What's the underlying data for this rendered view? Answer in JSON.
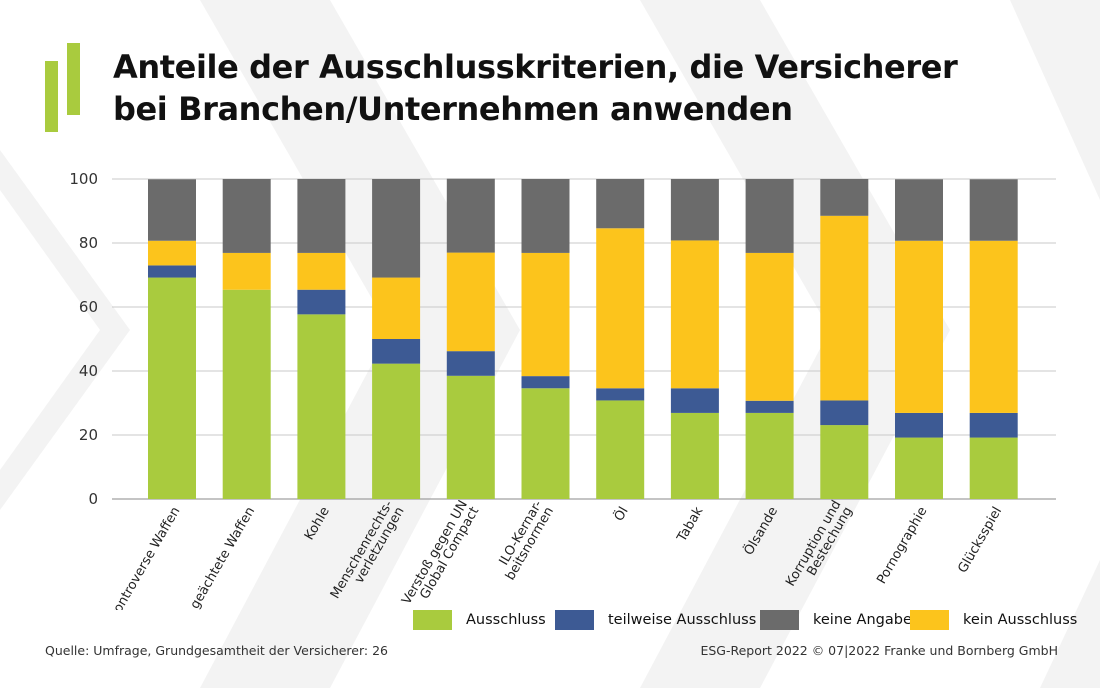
{
  "title_lines": [
    "Anteile der Ausschlusskriterien, die Versicherer",
    "bei Branchen/Unternehmen anwenden"
  ],
  "source": "Quelle: Umfrage, Grundgesamtheit der Versicherer: 26",
  "copyright": "ESG-Report 2022 © 07|2022 Franke und Bornberg GmbH",
  "colors": {
    "ausschluss": "#a9cb3e",
    "teilweise": "#3d5a94",
    "keine_angabe": "#6b6b6b",
    "kein_ausschluss": "#fcc41c",
    "logo": "#a9cb3e"
  },
  "chart_data": {
    "type": "bar",
    "stacked": true,
    "ylim": [
      0,
      100
    ],
    "yticks": [
      0,
      20,
      40,
      60,
      80,
      100
    ],
    "grid": true,
    "legend_position": "bottom-right",
    "categories": [
      [
        "kontroverse Waffen"
      ],
      [
        "geächtete Waffen"
      ],
      [
        "Kohle"
      ],
      [
        "Menschenrechts-",
        "verletzungen"
      ],
      [
        "Verstoß gegen UN",
        "Global Compact"
      ],
      [
        "ILO-Kernar-",
        "beitsnormen"
      ],
      [
        "Öl"
      ],
      [
        "Tabak"
      ],
      [
        "Ölsande"
      ],
      [
        "Korruption und",
        "Bestechung"
      ],
      [
        "Pornographie"
      ],
      [
        "Glücksspiel"
      ]
    ],
    "series": [
      {
        "name": "Ausschluss",
        "color_key": "ausschluss",
        "values": [
          69.2,
          65.4,
          57.7,
          42.3,
          38.5,
          34.6,
          30.8,
          26.9,
          26.9,
          23.1,
          19.2,
          19.2
        ]
      },
      {
        "name": "teilweise Ausschluss",
        "color_key": "teilweise",
        "values": [
          3.8,
          0,
          7.7,
          7.7,
          7.7,
          3.8,
          3.8,
          7.7,
          3.8,
          7.7,
          7.7,
          7.7
        ]
      },
      {
        "name": "kein Ausschluss",
        "color_key": "kein_ausschluss",
        "values": [
          7.7,
          11.5,
          11.5,
          19.2,
          30.8,
          38.5,
          50.0,
          46.2,
          46.2,
          57.7,
          53.8,
          53.8
        ]
      },
      {
        "name": "keine Angabe",
        "color_key": "keine_angabe",
        "values": [
          19.2,
          23.1,
          23.1,
          30.8,
          23.1,
          23.1,
          15.4,
          19.2,
          23.1,
          11.5,
          19.2,
          19.2
        ]
      }
    ],
    "legend_order": [
      "Ausschluss",
      "teilweise Ausschluss",
      "keine Angabe",
      "kein Ausschluss"
    ]
  }
}
